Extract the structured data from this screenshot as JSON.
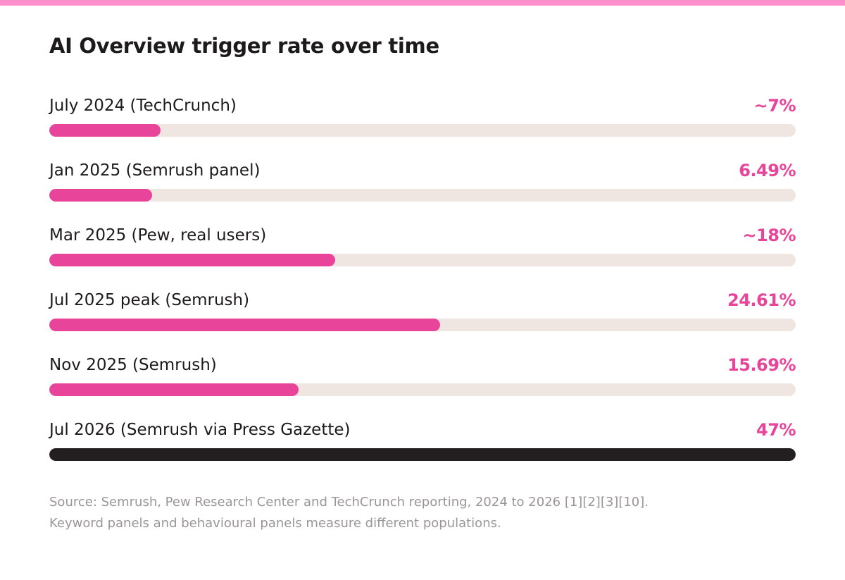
{
  "colors": {
    "stripe": "#ff8fcb",
    "accent": "#e8459a",
    "highlight_bar": "#231f20",
    "track": "#f0e6e1",
    "text": "#1d1a1b",
    "muted": "#9a9697"
  },
  "chart_data": {
    "type": "bar",
    "orientation": "horizontal",
    "title": "AI Overview trigger rate over time",
    "xlim": [
      0,
      47
    ],
    "rows": [
      {
        "label": "July 2024 (TechCrunch)",
        "display": "~7%",
        "value": 7,
        "highlight": false
      },
      {
        "label": "Jan 2025 (Semrush panel)",
        "display": "6.49%",
        "value": 6.49,
        "highlight": false
      },
      {
        "label": "Mar 2025 (Pew, real users)",
        "display": "~18%",
        "value": 18,
        "highlight": false
      },
      {
        "label": "Jul 2025 peak (Semrush)",
        "display": "24.61%",
        "value": 24.61,
        "highlight": false
      },
      {
        "label": "Nov 2025 (Semrush)",
        "display": "15.69%",
        "value": 15.69,
        "highlight": false
      },
      {
        "label": "Jul 2026 (Semrush via Press Gazette)",
        "display": "47%",
        "value": 47,
        "highlight": true
      }
    ],
    "source": "Source: Semrush, Pew Research Center and TechCrunch reporting, 2024 to 2026 [1][2][3][10]. Keyword panels and behavioural panels measure different populations."
  }
}
